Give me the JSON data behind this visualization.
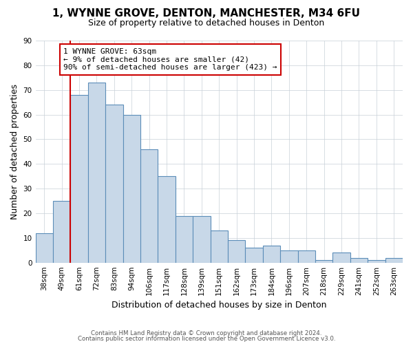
{
  "title": "1, WYNNE GROVE, DENTON, MANCHESTER, M34 6FU",
  "subtitle": "Size of property relative to detached houses in Denton",
  "xlabel": "Distribution of detached houses by size in Denton",
  "ylabel": "Number of detached properties",
  "bar_labels": [
    "38sqm",
    "49sqm",
    "61sqm",
    "72sqm",
    "83sqm",
    "94sqm",
    "106sqm",
    "117sqm",
    "128sqm",
    "139sqm",
    "151sqm",
    "162sqm",
    "173sqm",
    "184sqm",
    "196sqm",
    "207sqm",
    "218sqm",
    "229sqm",
    "241sqm",
    "252sqm",
    "263sqm"
  ],
  "bar_values": [
    12,
    25,
    68,
    73,
    64,
    60,
    46,
    35,
    19,
    19,
    13,
    9,
    6,
    7,
    5,
    5,
    1,
    4,
    2,
    1,
    2
  ],
  "bar_color": "#c8d8e8",
  "bar_edge_color": "#5b8db8",
  "vline_index": 2,
  "vline_color": "#cc0000",
  "ylim": [
    0,
    90
  ],
  "yticks": [
    0,
    10,
    20,
    30,
    40,
    50,
    60,
    70,
    80,
    90
  ],
  "annotation_title": "1 WYNNE GROVE: 63sqm",
  "annotation_line1": "← 9% of detached houses are smaller (42)",
  "annotation_line2": "90% of semi-detached houses are larger (423) →",
  "annotation_box_color": "#ffffff",
  "annotation_box_edge": "#cc0000",
  "footer1": "Contains HM Land Registry data © Crown copyright and database right 2024.",
  "footer2": "Contains public sector information licensed under the Open Government Licence v3.0.",
  "background_color": "#ffffff",
  "grid_color": "#c8d0d8"
}
